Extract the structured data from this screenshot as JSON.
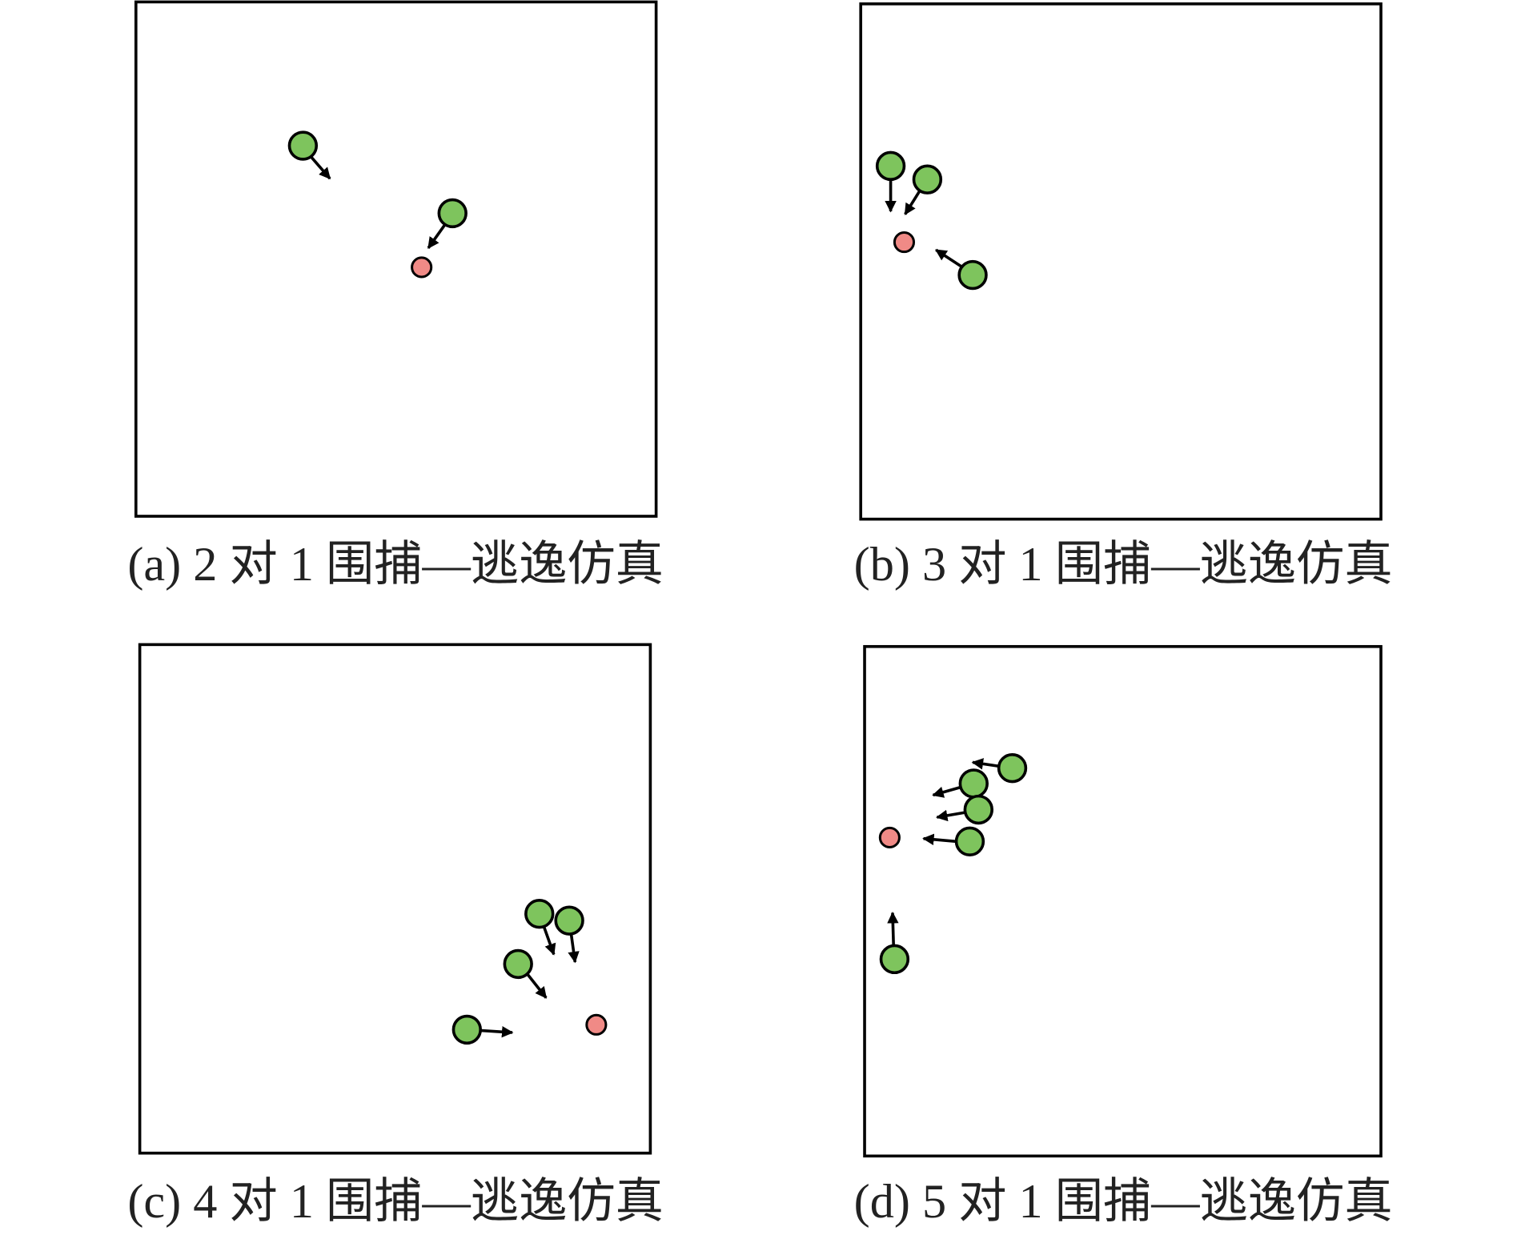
{
  "panels": [
    {
      "caption": "(a) 2 对 1 围捕—逃逸仿真"
    },
    {
      "caption": "(b) 3 对 1 围捕—逃逸仿真"
    },
    {
      "caption": "(c) 4 对 1 围捕—逃逸仿真"
    },
    {
      "caption": "(d) 5 对 1 围捕—逃逸仿真"
    }
  ]
}
